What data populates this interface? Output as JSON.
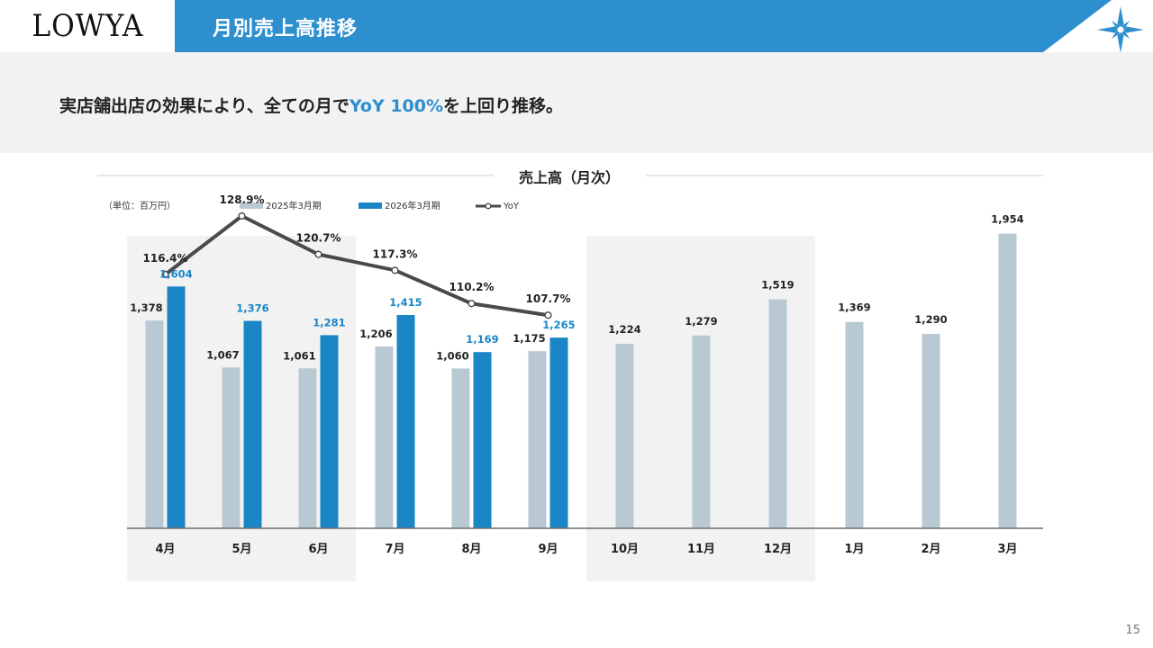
{
  "brand": {
    "logo": "LOWYA"
  },
  "header": {
    "title": "月別売上高推移"
  },
  "subtitle": {
    "before": "実店舗出店の効果により、全ての月で",
    "accent": "YoY 100%",
    "after": "を上回り推移。"
  },
  "page_number": "15",
  "colors": {
    "band": "#2e8fcf",
    "fy2025": "#b9c9d3",
    "fy2026": "#1a86c6",
    "yoy": "#4a4a4a",
    "highlight": "#f2f2f2"
  },
  "chart_data": {
    "type": "bar",
    "title": "売上高（月次）",
    "unit_note": "（単位：百万円）",
    "categories": [
      "4月",
      "5月",
      "6月",
      "7月",
      "8月",
      "9月",
      "10月",
      "11月",
      "12月",
      "1月",
      "2月",
      "3月"
    ],
    "series": [
      {
        "name": "2025年3月期",
        "values": [
          1378,
          1067,
          1061,
          1206,
          1060,
          1175,
          1224,
          1279,
          1519,
          1369,
          1290,
          1954
        ],
        "labels": [
          "1,378",
          "1,067",
          "1,061",
          "1,206",
          "1,060",
          "1,175",
          "1,224",
          "1,279",
          "1,519",
          "1,369",
          "1,290",
          "1,954"
        ]
      },
      {
        "name": "2026年3月期",
        "values": [
          1604,
          1376,
          1281,
          1415,
          1169,
          1265,
          null,
          null,
          null,
          null,
          null,
          null
        ],
        "labels": [
          "1,604",
          "1,376",
          "1,281",
          "1,415",
          "1,169",
          "1,265",
          null,
          null,
          null,
          null,
          null,
          null
        ]
      }
    ],
    "line_series": {
      "name": "YoY",
      "type": "line",
      "values": [
        116.4,
        128.9,
        120.7,
        117.3,
        110.2,
        107.7
      ],
      "labels": [
        "116.4%",
        "128.9%",
        "120.7%",
        "117.3%",
        "110.2%",
        "107.7%"
      ]
    },
    "highlighted_periods": [
      [
        "4月",
        "6月"
      ],
      [
        "10月",
        "12月"
      ]
    ],
    "ylim": [
      0,
      2200
    ],
    "legend": "top-left",
    "grid": false
  }
}
